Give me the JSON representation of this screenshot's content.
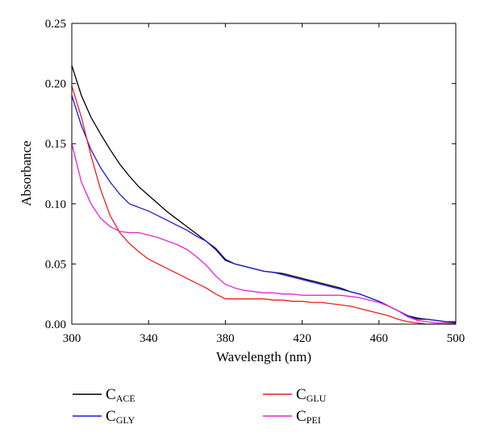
{
  "chart_data": {
    "type": "line",
    "title": "",
    "xlabel": "Wavelength (nm)",
    "ylabel": "Absorbance",
    "xlim": [
      300,
      500
    ],
    "ylim": [
      0,
      0.25
    ],
    "xticks": [
      300,
      340,
      380,
      420,
      460,
      500
    ],
    "xtick_labels": [
      "300",
      "340",
      "380",
      "420",
      "460",
      "500"
    ],
    "yticks": [
      0,
      0.05,
      0.1,
      0.15,
      0.2,
      0.25
    ],
    "ytick_labels": [
      "0.00",
      "0.05",
      "0.10",
      "0.15",
      "0.20",
      "0.25"
    ],
    "grid": false,
    "legend_position": "bottom",
    "series": [
      {
        "name": "C",
        "sub": "ACE",
        "color": "#000000",
        "x": [
          300,
          305,
          310,
          315,
          320,
          325,
          330,
          335,
          340,
          345,
          350,
          355,
          360,
          365,
          370,
          375,
          380,
          385,
          390,
          395,
          400,
          405,
          410,
          415,
          420,
          425,
          430,
          435,
          440,
          445,
          450,
          455,
          460,
          465,
          470,
          475,
          480,
          485,
          490,
          495,
          500
        ],
        "y": [
          0.215,
          0.19,
          0.172,
          0.158,
          0.145,
          0.133,
          0.123,
          0.114,
          0.107,
          0.1,
          0.093,
          0.087,
          0.081,
          0.075,
          0.069,
          0.062,
          0.053,
          0.05,
          0.048,
          0.046,
          0.044,
          0.043,
          0.042,
          0.04,
          0.038,
          0.036,
          0.034,
          0.032,
          0.03,
          0.027,
          0.025,
          0.022,
          0.019,
          0.015,
          0.011,
          0.007,
          0.005,
          0.004,
          0.003,
          0.002,
          0.001
        ]
      },
      {
        "name": "C",
        "sub": "GLY",
        "color": "#1a1adc",
        "x": [
          300,
          305,
          310,
          315,
          320,
          325,
          330,
          335,
          340,
          345,
          350,
          355,
          360,
          365,
          370,
          375,
          380,
          385,
          390,
          395,
          400,
          405,
          410,
          415,
          420,
          425,
          430,
          435,
          440,
          445,
          450,
          455,
          460,
          465,
          470,
          475,
          480,
          485,
          490,
          495,
          500
        ],
        "y": [
          0.19,
          0.165,
          0.145,
          0.13,
          0.118,
          0.108,
          0.1,
          0.097,
          0.094,
          0.09,
          0.086,
          0.082,
          0.078,
          0.073,
          0.069,
          0.063,
          0.054,
          0.05,
          0.048,
          0.046,
          0.044,
          0.043,
          0.041,
          0.039,
          0.037,
          0.035,
          0.033,
          0.031,
          0.029,
          0.027,
          0.025,
          0.022,
          0.019,
          0.015,
          0.011,
          0.007,
          0.004,
          0.004,
          0.003,
          0.002,
          0.002
        ]
      },
      {
        "name": "C",
        "sub": "GLU",
        "color": "#e8211c",
        "x": [
          300,
          305,
          310,
          315,
          320,
          325,
          330,
          335,
          340,
          345,
          350,
          355,
          360,
          365,
          370,
          375,
          380,
          385,
          390,
          395,
          400,
          405,
          410,
          415,
          420,
          425,
          430,
          435,
          440,
          445,
          450,
          455,
          460,
          465,
          470,
          475,
          480,
          485,
          490,
          495,
          500
        ],
        "y": [
          0.198,
          0.172,
          0.14,
          0.112,
          0.09,
          0.076,
          0.067,
          0.06,
          0.054,
          0.05,
          0.046,
          0.042,
          0.038,
          0.034,
          0.03,
          0.025,
          0.021,
          0.021,
          0.021,
          0.021,
          0.021,
          0.02,
          0.02,
          0.019,
          0.019,
          0.018,
          0.018,
          0.017,
          0.016,
          0.015,
          0.013,
          0.011,
          0.009,
          0.007,
          0.004,
          0.002,
          0.001,
          0.0,
          0.0,
          0.0,
          0.0
        ]
      },
      {
        "name": "C",
        "sub": "PEI",
        "color": "#e824d0",
        "x": [
          300,
          305,
          310,
          315,
          320,
          325,
          330,
          335,
          340,
          345,
          350,
          355,
          360,
          365,
          370,
          375,
          380,
          385,
          390,
          395,
          400,
          405,
          410,
          415,
          420,
          425,
          430,
          435,
          440,
          445,
          450,
          455,
          460,
          465,
          470,
          475,
          480,
          485,
          490,
          495,
          500
        ],
        "y": [
          0.15,
          0.118,
          0.1,
          0.088,
          0.081,
          0.077,
          0.076,
          0.076,
          0.074,
          0.072,
          0.069,
          0.066,
          0.062,
          0.056,
          0.049,
          0.04,
          0.033,
          0.03,
          0.028,
          0.027,
          0.026,
          0.026,
          0.025,
          0.025,
          0.024,
          0.024,
          0.024,
          0.024,
          0.024,
          0.023,
          0.022,
          0.02,
          0.018,
          0.015,
          0.011,
          0.006,
          0.003,
          0.002,
          0.001,
          0.001,
          0.0
        ]
      }
    ]
  }
}
